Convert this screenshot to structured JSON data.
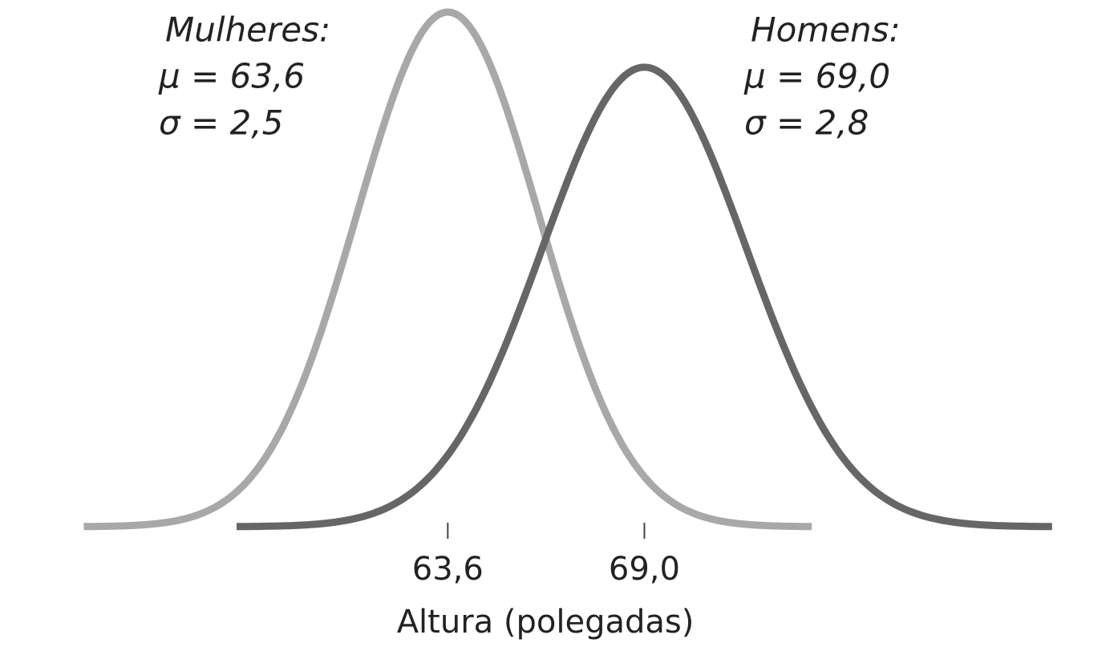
{
  "chart_data": {
    "type": "normal",
    "x_label": "Altura (polegadas)",
    "xlim": [
      51.3,
      81.9
    ],
    "xticks": [
      {
        "value": 63.6,
        "label": "63,6"
      },
      {
        "value": 69.0,
        "label": "69,0"
      }
    ],
    "series": [
      {
        "name": "Mulheres:",
        "color": "#a8a8a8",
        "mean": 63.6,
        "mean_label": "μ = 63,6",
        "sd": 2.5,
        "sd_label": "σ = 2,5"
      },
      {
        "name": "Homens:",
        "color": "#666666",
        "mean": 69.0,
        "mean_label": "μ = 69,0",
        "sd": 2.8,
        "sd_label": "σ = 2,8"
      }
    ]
  }
}
